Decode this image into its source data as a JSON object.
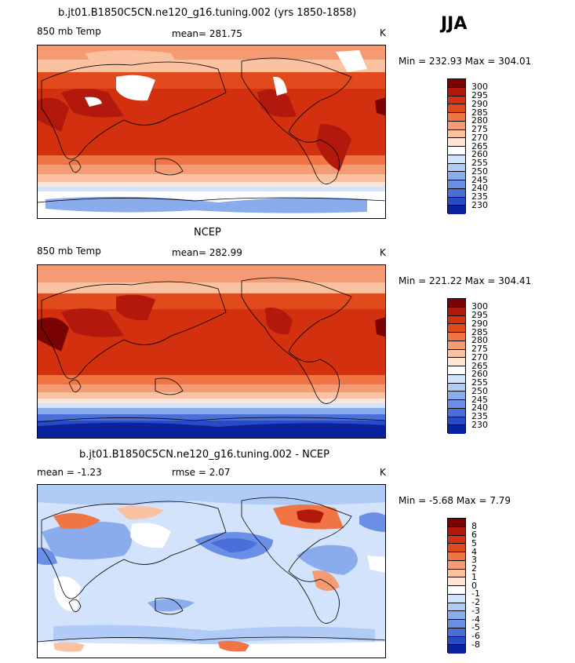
{
  "season": "JJA",
  "panels": [
    {
      "title": "b.jt01.B1850C5CN.ne120_g16.tuning.002 (yrs 1850-1858)",
      "left_label": "850 mb Temp",
      "mid_label": "mean= 281.75",
      "unit": "K",
      "minmax": "Min = 232.93 Max = 304.01",
      "colorbar_labels": [
        "300",
        "295",
        "290",
        "285",
        "280",
        "275",
        "270",
        "265",
        "260",
        "255",
        "250",
        "245",
        "240",
        "235",
        "230"
      ]
    },
    {
      "title": "NCEP",
      "left_label": "850 mb Temp",
      "mid_label": "mean= 282.99",
      "unit": "K",
      "minmax": "Min = 221.22 Max = 304.41",
      "colorbar_labels": [
        "300",
        "295",
        "290",
        "285",
        "280",
        "275",
        "270",
        "265",
        "260",
        "255",
        "250",
        "245",
        "240",
        "235",
        "230"
      ]
    },
    {
      "title": "b.jt01.B1850C5CN.ne120_g16.tuning.002 - NCEP",
      "left_label": "mean =   -1.23",
      "mid_label": "rmse =    2.07",
      "unit": "K",
      "minmax": "Min =   -5.68 Max =    7.79",
      "colorbar_labels": [
        "8",
        "6",
        "5",
        "4",
        "3",
        "2",
        "1",
        "0",
        "-1",
        "-2",
        "-3",
        "-4",
        "-5",
        "-6",
        "-8"
      ]
    }
  ],
  "colors": {
    "scale16": [
      "#7a0403",
      "#b2180c",
      "#d2300f",
      "#e04a1c",
      "#f07444",
      "#f59b73",
      "#fbc2a2",
      "#fde4d4",
      "#ffffff",
      "#d3e3fb",
      "#b0cbf6",
      "#8aacec",
      "#6a8fe4",
      "#4a6fd8",
      "#2a4bc6",
      "#0a22a0"
    ]
  },
  "chart_data": {
    "type": "heatmap",
    "season": "JJA",
    "fields": [
      {
        "name": "b.jt01.B1850C5CN.ne120_g16.tuning.002 (yrs 1850-1858)",
        "variable": "850 mb Temp",
        "units": "K",
        "mean": 281.75,
        "min": 232.93,
        "max": 304.01,
        "contour_levels": [
          230,
          235,
          240,
          245,
          250,
          255,
          260,
          265,
          270,
          275,
          280,
          285,
          290,
          295,
          300
        ]
      },
      {
        "name": "NCEP",
        "variable": "850 mb Temp",
        "units": "K",
        "mean": 282.99,
        "min": 221.22,
        "max": 304.41,
        "contour_levels": [
          230,
          235,
          240,
          245,
          250,
          255,
          260,
          265,
          270,
          275,
          280,
          285,
          290,
          295,
          300
        ]
      },
      {
        "name": "b.jt01.B1850C5CN.ne120_g16.tuning.002 - NCEP",
        "units": "K",
        "mean": -1.23,
        "rmse": 2.07,
        "min": -5.68,
        "max": 7.79,
        "contour_levels": [
          -8,
          -6,
          -5,
          -4,
          -3,
          -2,
          -1,
          0,
          1,
          2,
          3,
          4,
          5,
          6,
          8
        ]
      }
    ]
  }
}
